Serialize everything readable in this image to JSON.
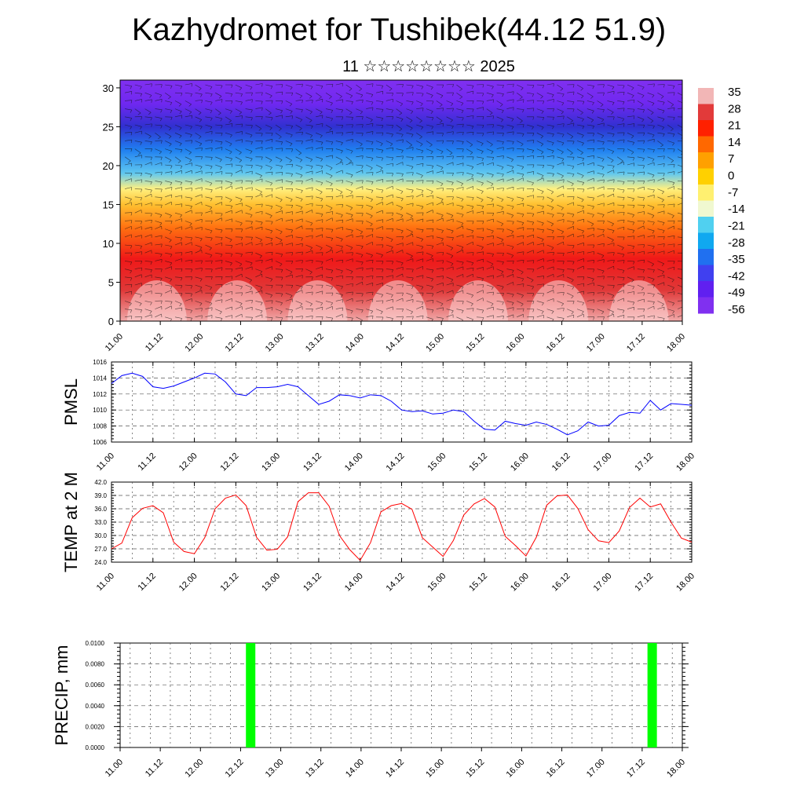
{
  "header": {
    "title": "Kazhydromet for Tushibek(44.12 51.9)",
    "subtitle": "11 ☆☆☆☆☆☆☆☆ 2025"
  },
  "time_labels": [
    "11.00",
    "11.12",
    "12.00",
    "12.12",
    "13.00",
    "13.12",
    "14.00",
    "14.12",
    "15.00",
    "15.12",
    "16.00",
    "16.12",
    "17.00",
    "17.12",
    "18.00"
  ],
  "chart_data": [
    {
      "name": "cross-section",
      "type": "heatmap",
      "ylabel": "",
      "ylim": [
        0,
        31
      ],
      "yticks": [
        0,
        5,
        10,
        15,
        20,
        25,
        30
      ],
      "colorbar_labels": [
        "35",
        "28",
        "21",
        "14",
        "7",
        "0",
        "-7",
        "-14",
        "-21",
        "-28",
        "-35",
        "-42",
        "-49",
        "-56"
      ],
      "colorbar_colors": [
        "#f2b6b6",
        "#e23a3a",
        "#ff2000",
        "#ff6800",
        "#ffa000",
        "#ffd000",
        "#fff070",
        "#f0f8d0",
        "#50d0f0",
        "#10a8f0",
        "#2070f0",
        "#4040f0",
        "#6020f0",
        "#8030f0"
      ],
      "layers": [
        {
          "level": 0,
          "color": "#f0a8a8"
        },
        {
          "level": 4,
          "color": "#e03838"
        },
        {
          "level": 8,
          "color": "#f01818"
        },
        {
          "level": 12,
          "color": "#ff7010"
        },
        {
          "level": 15,
          "color": "#ffc030"
        },
        {
          "level": 17,
          "color": "#fff080"
        },
        {
          "level": 19,
          "color": "#60c8f0"
        },
        {
          "level": 22,
          "color": "#2080f0"
        },
        {
          "level": 25,
          "color": "#3030d0"
        },
        {
          "level": 28,
          "color": "#7028f0"
        },
        {
          "level": 31,
          "color": "#8030f0"
        }
      ]
    },
    {
      "name": "pmsl",
      "type": "line",
      "ylabel": "PMSL",
      "ylim": [
        1006,
        1016
      ],
      "yticks": [
        "1006",
        "1008",
        "1010",
        "1012",
        "1014",
        "1016"
      ],
      "color": "#0000ff",
      "values": [
        1013.3,
        1014.3,
        1014.6,
        1014.2,
        1012.9,
        1012.7,
        1013.0,
        1013.5,
        1014.0,
        1014.6,
        1014.5,
        1013.5,
        1012.0,
        1011.8,
        1012.8,
        1012.8,
        1012.9,
        1013.2,
        1012.9,
        1011.8,
        1010.7,
        1011.1,
        1011.9,
        1011.8,
        1011.5,
        1011.9,
        1011.8,
        1011.1,
        1010.0,
        1009.8,
        1009.9,
        1009.5,
        1009.6,
        1010.0,
        1009.8,
        1008.6,
        1007.6,
        1007.5,
        1008.6,
        1008.3,
        1008.1,
        1008.5,
        1008.2,
        1007.6,
        1006.9,
        1007.4,
        1008.5,
        1008.0,
        1008.1,
        1009.3,
        1009.7,
        1009.6,
        1011.2,
        1010.0,
        1010.8,
        1010.7,
        1010.6
      ],
      "x_start": 0,
      "x_step": 3
    },
    {
      "name": "temp2m",
      "type": "line",
      "ylabel": "TEMP at 2 M",
      "ylim": [
        24,
        42
      ],
      "yticks": [
        "24.0",
        "27.0",
        "30.0",
        "33.0",
        "36.0",
        "39.0",
        "42.0"
      ],
      "color": "#ff0000",
      "values": [
        27.0,
        28.3,
        34.0,
        36.1,
        36.7,
        35.1,
        28.5,
        26.4,
        25.9,
        29.5,
        36.0,
        38.4,
        39.1,
        36.7,
        29.6,
        26.7,
        26.9,
        29.7,
        37.6,
        39.6,
        39.6,
        36.6,
        30.0,
        26.8,
        24.4,
        28.4,
        35.3,
        36.7,
        37.2,
        35.9,
        29.5,
        27.4,
        25.3,
        28.9,
        34.6,
        37.1,
        38.3,
        36.4,
        29.8,
        27.7,
        25.4,
        29.6,
        36.8,
        38.9,
        39.1,
        36.1,
        31.3,
        28.8,
        28.4,
        31.0,
        36.3,
        38.4,
        36.4,
        37.1,
        33.0,
        29.4,
        28.5
      ],
      "x_start": 0,
      "x_step": 3
    },
    {
      "name": "precip",
      "type": "bar",
      "ylabel": "PRECIP, mm",
      "ylim": [
        0,
        0.01
      ],
      "yticks": [
        "0.0000",
        "0.0020",
        "0.0040",
        "0.0060",
        "0.0080",
        "0.0100"
      ],
      "color": "#00ff00",
      "bars": [
        {
          "x": 39,
          "value": 0.01
        },
        {
          "x": 159,
          "value": 0.01
        }
      ]
    }
  ]
}
